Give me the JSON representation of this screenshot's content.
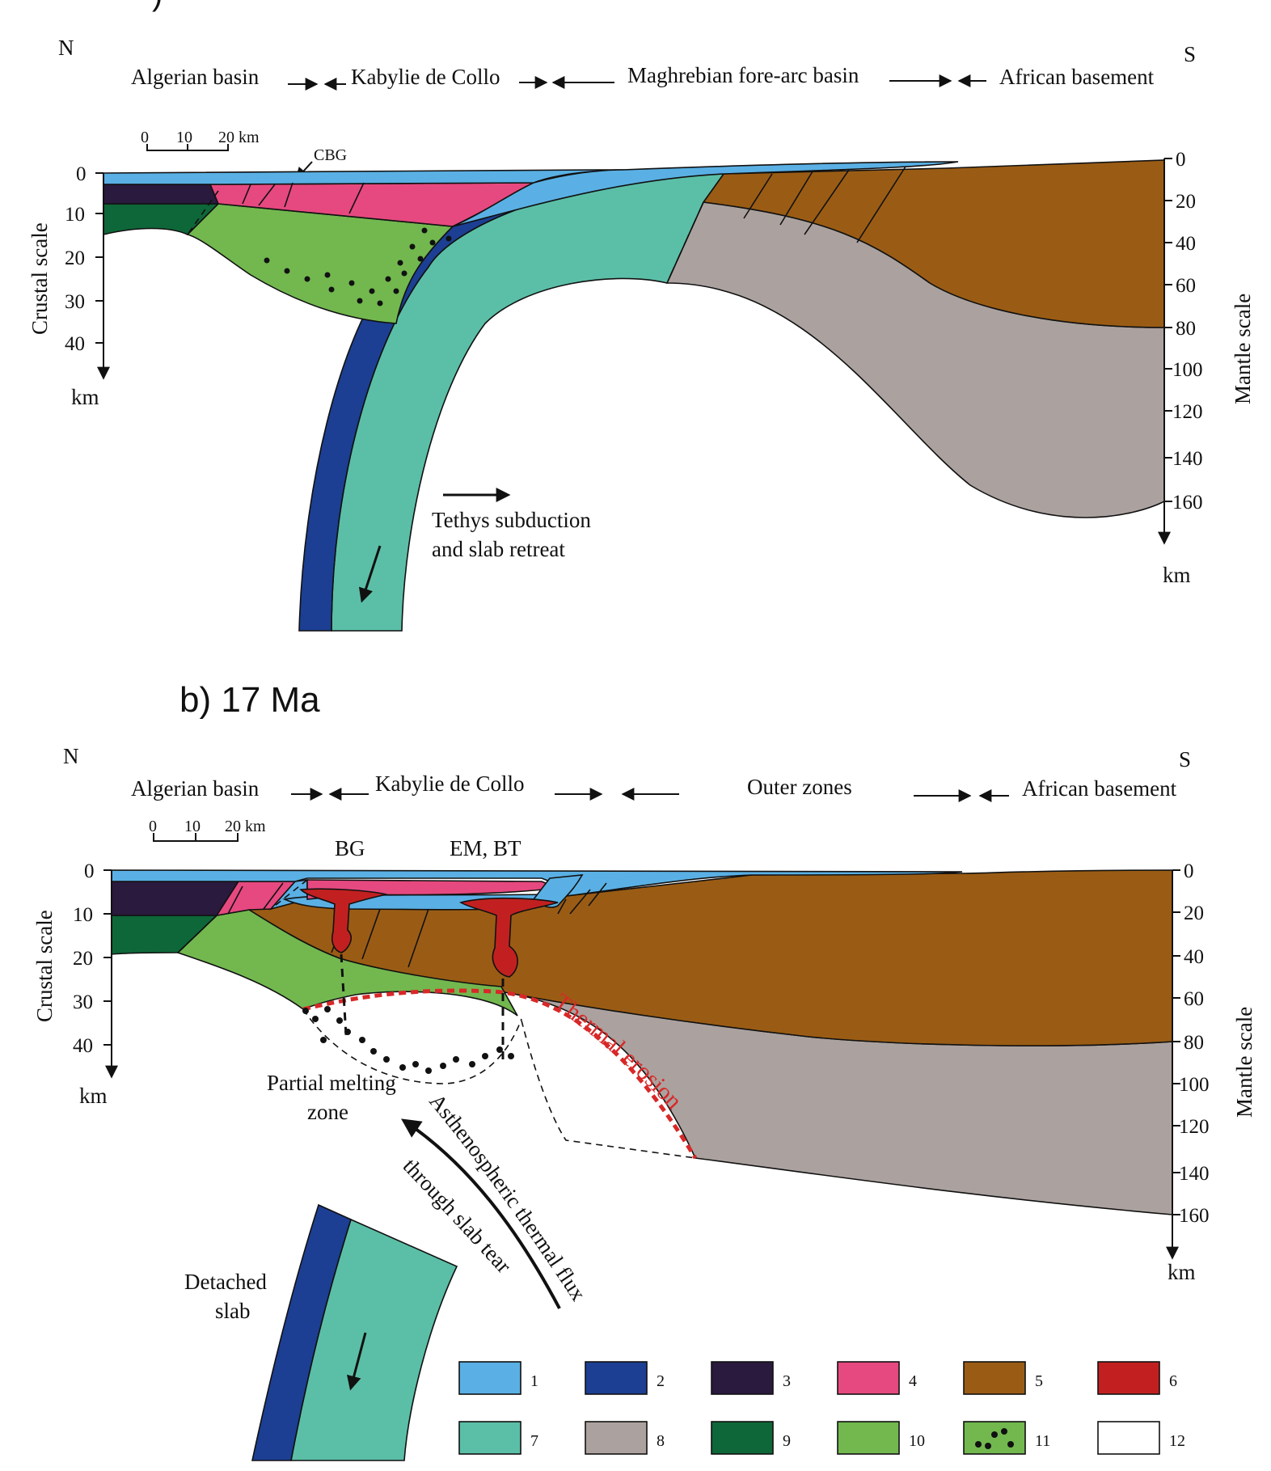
{
  "panel_a": {
    "north": "N",
    "south": "S",
    "regions": [
      "Algerian basin",
      "Kabylie de Collo",
      "Maghrebian fore-arc basin",
      "African basement"
    ],
    "scalebar": {
      "t0": "0",
      "t1": "10",
      "t2": "20 km"
    },
    "label_cbg": "CBG",
    "crustal_axis_title": "Crustal scale",
    "crustal_ticks": [
      "0",
      "10",
      "20",
      "30",
      "40"
    ],
    "crustal_unit": "km",
    "mantle_axis_title": "Mantle scale",
    "mantle_ticks": [
      "0",
      "20",
      "40",
      "60",
      "80",
      "100",
      "120",
      "140",
      "160"
    ],
    "mantle_unit": "km",
    "annotation_line1": "Tethys subduction",
    "annotation_line2": "and slab retreat"
  },
  "panel_b": {
    "title": "b) 17 Ma",
    "north": "N",
    "south": "S",
    "regions": [
      "Algerian basin",
      "Kabylie de Collo",
      "Outer zones",
      "African basement"
    ],
    "scalebar": {
      "t0": "0",
      "t1": "10",
      "t2": "20 km"
    },
    "label_bg": "BG",
    "label_em_bt": "EM, BT",
    "crustal_axis_title": "Crustal scale",
    "crustal_ticks": [
      "0",
      "10",
      "20",
      "30",
      "40"
    ],
    "crustal_unit": "km",
    "mantle_axis_title": "Mantle scale",
    "mantle_ticks": [
      "0",
      "20",
      "40",
      "60",
      "80",
      "100",
      "120",
      "140",
      "160"
    ],
    "mantle_unit": "km",
    "thermal_erosion": "Thermal erosion",
    "partial_melting_line1": "Partial melting",
    "partial_melting_line2": "zone",
    "flux_line1": "Asthenospheric thermal flux",
    "flux_line2": "through slab tear",
    "detached_line1": "Detached",
    "detached_line2": "slab"
  },
  "legend": [
    {
      "number": "1",
      "color": "#5ab0e4"
    },
    {
      "number": "2",
      "color": "#1c3f93"
    },
    {
      "number": "3",
      "color": "#2a1a3e"
    },
    {
      "number": "4",
      "color": "#e6497f"
    },
    {
      "number": "5",
      "color": "#9a5c14"
    },
    {
      "number": "6",
      "color": "#c22020"
    },
    {
      "number": "7",
      "color": "#5bbfa7"
    },
    {
      "number": "8",
      "color": "#aba29f"
    },
    {
      "number": "9",
      "color": "#0e6738"
    },
    {
      "number": "10",
      "color": "#72b84f"
    },
    {
      "number": "11",
      "color": "#72b84f"
    },
    {
      "number": "12",
      "color": "#ffffff"
    }
  ]
}
